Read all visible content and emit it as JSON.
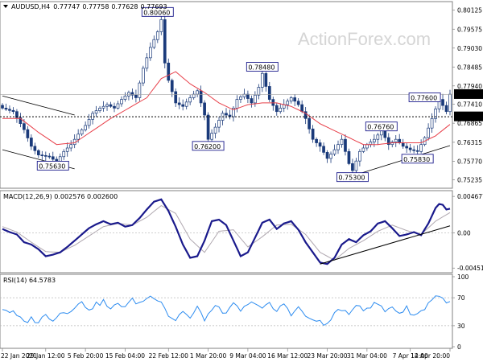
{
  "watermark": "ActionForex.com",
  "chart_data": [
    {
      "panel": "price",
      "type": "candlestick",
      "symbol_label": "AUDUSD,H4",
      "ohlc_values": [
        "0.77747",
        "0.77758",
        "0.77628",
        "0.77693"
      ],
      "y_ticks": [
        "0.80125",
        "0.79575",
        "0.79030",
        "0.78485",
        "0.77940",
        "0.77410",
        "0.76865",
        "0.76315",
        "0.75770",
        "0.75235"
      ],
      "ylim": [
        0.7506,
        0.803
      ],
      "last_price": "0.77693",
      "level_label": "0.77050",
      "level": 0.7705,
      "annotations": [
        {
          "label": "0.80060",
          "x": 43,
          "y": 0.8006
        },
        {
          "label": "0.78480",
          "x": 72,
          "y": 0.7848
        },
        {
          "label": "0.77600",
          "x": 117,
          "y": 0.776
        },
        {
          "label": "0.76760",
          "x": 105,
          "y": 0.7676
        },
        {
          "label": "0.76200",
          "x": 57,
          "y": 0.762
        },
        {
          "label": "0.75830",
          "x": 115,
          "y": 0.7583
        },
        {
          "label": "0.75630",
          "x": 14,
          "y": 0.7563
        },
        {
          "label": "0.75300",
          "x": 97,
          "y": 0.753
        }
      ],
      "close_keypoints": [
        [
          0,
          0.773
        ],
        [
          3,
          0.772
        ],
        [
          6,
          0.7668
        ],
        [
          8,
          0.762
        ],
        [
          10,
          0.7595
        ],
        [
          13,
          0.759
        ],
        [
          15,
          0.7575
        ],
        [
          17,
          0.7605
        ],
        [
          19,
          0.7625
        ],
        [
          21,
          0.7655
        ],
        [
          23,
          0.768
        ],
        [
          25,
          0.7715
        ],
        [
          27,
          0.773
        ],
        [
          29,
          0.774
        ],
        [
          31,
          0.773
        ],
        [
          33,
          0.7755
        ],
        [
          35,
          0.7775
        ],
        [
          37,
          0.776
        ],
        [
          39,
          0.7845
        ],
        [
          41,
          0.7905
        ],
        [
          43,
          0.795
        ],
        [
          44,
          0.7985
        ],
        [
          45,
          0.786
        ],
        [
          46,
          0.781
        ],
        [
          48,
          0.7745
        ],
        [
          50,
          0.7735
        ],
        [
          52,
          0.776
        ],
        [
          54,
          0.778
        ],
        [
          56,
          0.771
        ],
        [
          57,
          0.764
        ],
        [
          59,
          0.7675
        ],
        [
          61,
          0.7715
        ],
        [
          63,
          0.7705
        ],
        [
          65,
          0.7755
        ],
        [
          67,
          0.777
        ],
        [
          69,
          0.7745
        ],
        [
          71,
          0.779
        ],
        [
          72,
          0.783
        ],
        [
          74,
          0.7755
        ],
        [
          76,
          0.772
        ],
        [
          78,
          0.774
        ],
        [
          80,
          0.776
        ],
        [
          82,
          0.774
        ],
        [
          84,
          0.77
        ],
        [
          86,
          0.764
        ],
        [
          88,
          0.762
        ],
        [
          90,
          0.7585
        ],
        [
          92,
          0.761
        ],
        [
          94,
          0.764
        ],
        [
          96,
          0.757
        ],
        [
          97,
          0.755
        ],
        [
          99,
          0.7605
        ],
        [
          101,
          0.7625
        ],
        [
          103,
          0.764
        ],
        [
          105,
          0.7665
        ],
        [
          107,
          0.7625
        ],
        [
          109,
          0.764
        ],
        [
          111,
          0.762
        ],
        [
          113,
          0.761
        ],
        [
          115,
          0.7605
        ],
        [
          117,
          0.7645
        ],
        [
          119,
          0.77
        ],
        [
          121,
          0.7755
        ],
        [
          123,
          0.772
        ],
        [
          124,
          0.777
        ]
      ],
      "ema_keypoints": [
        [
          0,
          0.77
        ],
        [
          5,
          0.77
        ],
        [
          10,
          0.766
        ],
        [
          15,
          0.7625
        ],
        [
          20,
          0.763
        ],
        [
          25,
          0.7665
        ],
        [
          30,
          0.77
        ],
        [
          35,
          0.773
        ],
        [
          40,
          0.776
        ],
        [
          44,
          0.7815
        ],
        [
          48,
          0.7835
        ],
        [
          52,
          0.78
        ],
        [
          56,
          0.7775
        ],
        [
          60,
          0.7745
        ],
        [
          64,
          0.7725
        ],
        [
          68,
          0.774
        ],
        [
          72,
          0.7745
        ],
        [
          76,
          0.7745
        ],
        [
          80,
          0.7735
        ],
        [
          84,
          0.7715
        ],
        [
          88,
          0.7685
        ],
        [
          92,
          0.7665
        ],
        [
          96,
          0.7645
        ],
        [
          100,
          0.7625
        ],
        [
          104,
          0.7625
        ],
        [
          108,
          0.763
        ],
        [
          112,
          0.763
        ],
        [
          116,
          0.763
        ],
        [
          120,
          0.765
        ],
        [
          124,
          0.7683
        ]
      ],
      "trendlines": [
        {
          "from": [
            0,
            0.7765
          ],
          "to": [
            20,
            0.771
          ]
        },
        {
          "from": [
            0,
            0.761
          ],
          "to": [
            20,
            0.7555
          ]
        },
        {
          "from": [
            97,
            0.7535
          ],
          "to": [
            124,
            0.7622
          ]
        }
      ]
    },
    {
      "panel": "macd",
      "type": "line",
      "label": "MACD(12,26,9) 0.002576 0.002600",
      "y_ticks": [
        "0.004677",
        "0.00",
        "-0.004519"
      ],
      "ylim": [
        -0.0047,
        0.0049
      ],
      "macd_keypoints": [
        [
          0,
          0.0005
        ],
        [
          2,
          0.0001
        ],
        [
          4,
          -0.0002
        ],
        [
          6,
          -0.0012
        ],
        [
          8,
          -0.0015
        ],
        [
          10,
          -0.0021
        ],
        [
          12,
          -0.003
        ],
        [
          14,
          -0.0028
        ],
        [
          16,
          -0.0025
        ],
        [
          18,
          -0.0018
        ],
        [
          20,
          -0.001
        ],
        [
          22,
          -0.0002
        ],
        [
          24,
          0.0006
        ],
        [
          26,
          0.0011
        ],
        [
          28,
          0.0015
        ],
        [
          30,
          0.0011
        ],
        [
          32,
          0.0013
        ],
        [
          34,
          0.0008
        ],
        [
          36,
          0.001
        ],
        [
          38,
          0.0019
        ],
        [
          40,
          0.003
        ],
        [
          42,
          0.004
        ],
        [
          44,
          0.0043
        ],
        [
          46,
          0.0028
        ],
        [
          48,
          0.0008
        ],
        [
          50,
          -0.0015
        ],
        [
          52,
          -0.0032
        ],
        [
          54,
          -0.003
        ],
        [
          56,
          -0.001
        ],
        [
          58,
          0.0015
        ],
        [
          60,
          0.0017
        ],
        [
          62,
          0.001
        ],
        [
          64,
          -0.001
        ],
        [
          66,
          -0.003
        ],
        [
          68,
          -0.0025
        ],
        [
          70,
          -0.0006
        ],
        [
          72,
          0.0013
        ],
        [
          74,
          0.0017
        ],
        [
          76,
          0.0005
        ],
        [
          78,
          0.0012
        ],
        [
          80,
          0.0015
        ],
        [
          82,
          0.0004
        ],
        [
          84,
          -0.0012
        ],
        [
          86,
          -0.0025
        ],
        [
          88,
          -0.0038
        ],
        [
          90,
          -0.004
        ],
        [
          92,
          -0.0032
        ],
        [
          94,
          -0.0015
        ],
        [
          96,
          -0.0008
        ],
        [
          98,
          -0.0012
        ],
        [
          100,
          -0.0003
        ],
        [
          102,
          0.0002
        ],
        [
          104,
          0.0012
        ],
        [
          106,
          0.0015
        ],
        [
          108,
          0.0006
        ],
        [
          110,
          -0.0004
        ],
        [
          112,
          -0.0002
        ],
        [
          114,
          0.0001
        ],
        [
          116,
          -0.0003
        ],
        [
          118,
          0.0012
        ],
        [
          120,
          0.0032
        ],
        [
          121,
          0.0037
        ],
        [
          122,
          0.0036
        ],
        [
          123,
          0.003
        ],
        [
          124,
          0.0031
        ]
      ],
      "signal_keypoints": [
        [
          0,
          0.0008
        ],
        [
          4,
          0.0001
        ],
        [
          8,
          -0.0012
        ],
        [
          12,
          -0.0024
        ],
        [
          16,
          -0.0025
        ],
        [
          20,
          -0.0016
        ],
        [
          24,
          -0.0004
        ],
        [
          28,
          0.0008
        ],
        [
          32,
          0.0012
        ],
        [
          36,
          0.001
        ],
        [
          40,
          0.002
        ],
        [
          44,
          0.0035
        ],
        [
          48,
          0.0025
        ],
        [
          52,
          -0.0008
        ],
        [
          56,
          -0.0025
        ],
        [
          60,
          0.0002
        ],
        [
          64,
          0.0004
        ],
        [
          68,
          -0.0018
        ],
        [
          72,
          -0.0005
        ],
        [
          76,
          0.001
        ],
        [
          80,
          0.0011
        ],
        [
          84,
          -0.0002
        ],
        [
          88,
          -0.0025
        ],
        [
          92,
          -0.0035
        ],
        [
          96,
          -0.002
        ],
        [
          100,
          -0.001
        ],
        [
          104,
          0.0002
        ],
        [
          108,
          0.001
        ],
        [
          112,
          0.0003
        ],
        [
          116,
          -0.0002
        ],
        [
          120,
          0.0015
        ],
        [
          124,
          0.0026
        ]
      ],
      "trendline": {
        "from": [
          88,
          -0.004
        ],
        "to": [
          124,
          0.0009
        ]
      }
    },
    {
      "panel": "rsi",
      "type": "line",
      "label": "RSI(14) 64.5783",
      "y_ticks": [
        "100",
        "70",
        "30",
        "0"
      ],
      "ylim": [
        0,
        100
      ],
      "levels": [
        70,
        30
      ],
      "rsi_keypoints": [
        [
          0,
          55
        ],
        [
          3,
          48
        ],
        [
          6,
          35
        ],
        [
          8,
          40
        ],
        [
          10,
          36
        ],
        [
          12,
          45
        ],
        [
          14,
          40
        ],
        [
          16,
          48
        ],
        [
          18,
          50
        ],
        [
          20,
          58
        ],
        [
          22,
          62
        ],
        [
          24,
          55
        ],
        [
          26,
          60
        ],
        [
          28,
          65
        ],
        [
          30,
          52
        ],
        [
          32,
          62
        ],
        [
          34,
          58
        ],
        [
          36,
          66
        ],
        [
          38,
          62
        ],
        [
          40,
          70
        ],
        [
          42,
          72
        ],
        [
          44,
          66
        ],
        [
          46,
          45
        ],
        [
          48,
          38
        ],
        [
          50,
          52
        ],
        [
          52,
          40
        ],
        [
          54,
          55
        ],
        [
          56,
          40
        ],
        [
          58,
          52
        ],
        [
          60,
          58
        ],
        [
          62,
          45
        ],
        [
          64,
          60
        ],
        [
          66,
          52
        ],
        [
          68,
          58
        ],
        [
          70,
          65
        ],
        [
          72,
          55
        ],
        [
          74,
          60
        ],
        [
          76,
          50
        ],
        [
          78,
          62
        ],
        [
          80,
          48
        ],
        [
          82,
          55
        ],
        [
          84,
          45
        ],
        [
          86,
          35
        ],
        [
          88,
          38
        ],
        [
          90,
          30
        ],
        [
          92,
          48
        ],
        [
          94,
          55
        ],
        [
          96,
          42
        ],
        [
          98,
          62
        ],
        [
          100,
          55
        ],
        [
          102,
          58
        ],
        [
          104,
          62
        ],
        [
          106,
          50
        ],
        [
          108,
          58
        ],
        [
          110,
          48
        ],
        [
          112,
          55
        ],
        [
          114,
          45
        ],
        [
          116,
          50
        ],
        [
          118,
          62
        ],
        [
          120,
          74
        ],
        [
          122,
          68
        ],
        [
          124,
          64.58
        ]
      ]
    }
  ],
  "x_axis": {
    "labels": [
      "22 Jan 2021",
      "29 Jan 12:00",
      "5 Feb 20:00",
      "15 Feb 04:00",
      "22 Feb 12:00",
      "1 Mar 20:00",
      "9 Mar 04:00",
      "16 Mar 12:00",
      "23 Mar 20:00",
      "31 Mar 04:00",
      "7 Apr 12:00",
      "14 Apr 20:00"
    ],
    "label_bars": [
      0,
      12,
      23,
      34,
      46,
      57,
      68,
      79,
      90,
      101,
      113,
      124
    ]
  },
  "colors": {
    "price": "#1a3a7a",
    "ema": "#e8404a",
    "macd": "#1a1a8c",
    "signal": "#b0a8b0",
    "rsi": "#2d8cf0",
    "trendline": "#000000",
    "axis": "#808080",
    "label_border": "#1c1c8c"
  }
}
